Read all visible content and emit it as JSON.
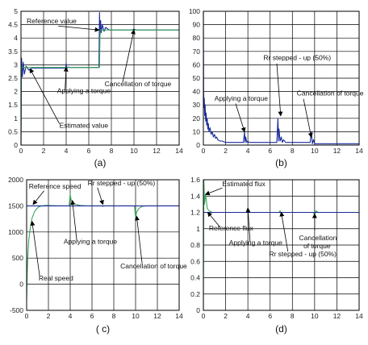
{
  "chart_data": [
    {
      "id": "a",
      "type": "line",
      "caption": "(a)",
      "xlim": [
        0,
        14
      ],
      "ylim": [
        0,
        5
      ],
      "xticks": [
        0,
        2,
        4,
        6,
        8,
        10,
        12,
        14
      ],
      "yticks": [
        0,
        0.5,
        1,
        1.5,
        2,
        2.5,
        3,
        3.5,
        4,
        4.5,
        5
      ],
      "grid": true,
      "series": [
        {
          "color": "#1a2a9a",
          "x": [
            0,
            0.05,
            0.12,
            0.2,
            0.3,
            0.45,
            0.7,
            1,
            3.95,
            4,
            4.05,
            4.15,
            4.3,
            6.9,
            6.95,
            7.0,
            7.05,
            7.1,
            7.2,
            7.35,
            7.5,
            7.8,
            8.2,
            9.8,
            10,
            10.2,
            14
          ],
          "y": [
            0,
            3.25,
            2.55,
            3.1,
            2.65,
            2.95,
            2.8,
            2.88,
            2.88,
            3.05,
            2.85,
            2.92,
            2.9,
            2.9,
            4.95,
            4.1,
            4.65,
            4.2,
            4.5,
            4.25,
            4.4,
            4.3,
            4.3,
            4.3,
            4.33,
            4.3,
            4.3
          ]
        },
        {
          "color": "#3aa45a",
          "x": [
            0,
            0.03,
            0.3,
            1,
            6.95,
            7.0,
            14
          ],
          "y": [
            0,
            2.9,
            2.9,
            2.9,
            2.9,
            4.3,
            4.3
          ]
        }
      ],
      "annotations": [
        {
          "text": "Reference value",
          "x": 0.5,
          "y": 4.55,
          "ax": 3.3,
          "ay": 4.45,
          "tx": 6.9,
          "ty": 4.3
        },
        {
          "text": "Applying a torque",
          "x": 3.2,
          "y": 1.95,
          "ax": 3.9,
          "ay": 2.05,
          "tx": 4.0,
          "ty": 2.9
        },
        {
          "text": "Cancellation of torque",
          "x": 7.4,
          "y": 2.2,
          "ax": 9.0,
          "ay": 2.35,
          "tx": 10.0,
          "ty": 4.3
        },
        {
          "text": "Estimated value",
          "x": 3.4,
          "y": 0.65,
          "ax": 3.4,
          "ay": 0.8,
          "tx": 0.8,
          "ty": 2.85
        }
      ]
    },
    {
      "id": "b",
      "type": "line",
      "caption": "(b)",
      "xlim": [
        0,
        14
      ],
      "ylim": [
        0,
        100
      ],
      "xticks": [
        0,
        2,
        4,
        6,
        8,
        10,
        12,
        14
      ],
      "yticks": [
        0,
        10,
        20,
        30,
        40,
        50,
        60,
        70,
        80,
        90,
        100
      ],
      "grid": true,
      "series": [
        {
          "color": "#1a2a9a",
          "x": [
            0,
            0.02,
            0.05,
            0.08,
            0.12,
            0.16,
            0.2,
            0.25,
            0.3,
            0.35,
            0.4,
            0.45,
            0.5,
            0.6,
            0.7,
            0.8,
            0.9,
            1.0,
            1.1,
            1.2,
            1.3,
            1.5,
            1.7,
            2.0,
            2.5,
            3.0,
            3.6,
            3.7,
            3.75,
            3.8,
            3.9,
            4.0,
            4.1,
            4.3,
            4.6,
            5.0,
            6.0,
            6.6,
            6.7,
            6.75,
            6.8,
            6.9,
            7.0,
            7.1,
            7.2,
            7.4,
            7.8,
            8.5,
            9.0,
            9.6,
            9.7,
            9.8,
            9.9,
            10.0,
            10.2,
            11,
            12,
            13,
            14
          ],
          "y": [
            100,
            40,
            28,
            35,
            22,
            30,
            18,
            24,
            15,
            20,
            12,
            16,
            10,
            13,
            8,
            10,
            6,
            8,
            5,
            6,
            4,
            3,
            3,
            2,
            2,
            2,
            2,
            10,
            2,
            6,
            2,
            3,
            2,
            2,
            2,
            2,
            2,
            2,
            20,
            3,
            12,
            3,
            6,
            2,
            4,
            2,
            2,
            2,
            2,
            2,
            10,
            1,
            4,
            1,
            1,
            1,
            1,
            1,
            1
          ]
        }
      ],
      "annotations": [
        {
          "text": "Rr stepped - up (50%)",
          "x": 5.4,
          "y": 63.5,
          "ax": 6.6,
          "ay": 61,
          "tx": 6.95,
          "ty": 22
        },
        {
          "text": "Applying a torque",
          "x": 1.0,
          "y": 33,
          "ax": 2.9,
          "ay": 31,
          "tx": 3.7,
          "ty": 10
        },
        {
          "text": "Cancellation of torque",
          "x": 8.4,
          "y": 37,
          "ax": 9.0,
          "ay": 34.5,
          "tx": 9.7,
          "ty": 6
        }
      ]
    },
    {
      "id": "c",
      "type": "line",
      "caption": "( c)",
      "xlim": [
        0,
        14
      ],
      "ylim": [
        -500,
        2000
      ],
      "xticks": [
        0,
        2,
        4,
        6,
        8,
        10,
        12,
        14
      ],
      "yticks": [
        -500,
        0,
        500,
        1000,
        1500,
        2000
      ],
      "grid": true,
      "series": [
        {
          "color": "#3aa45a",
          "x": [
            0,
            0.05,
            0.1,
            0.2,
            0.35,
            0.5,
            0.7,
            0.9,
            1.1,
            1.4,
            1.8,
            2.3,
            3.0,
            3.9,
            4.0,
            4.1,
            4.25,
            4.5,
            4.9,
            5.5,
            6.8,
            7.0,
            7.2,
            9.9,
            10.0,
            10.1,
            10.3,
            10.6,
            11,
            14
          ],
          "y": [
            -300,
            200,
            500,
            850,
            1100,
            1270,
            1380,
            1440,
            1480,
            1500,
            1510,
            1505,
            1500,
            1500,
            1720,
            1600,
            1560,
            1530,
            1510,
            1500,
            1500,
            1490,
            1500,
            1500,
            1270,
            1380,
            1450,
            1490,
            1500,
            1500
          ]
        },
        {
          "color": "#1a2a9a",
          "x": [
            0,
            0.08,
            0.4,
            14
          ],
          "y": [
            1500,
            1500,
            1500,
            1500
          ]
        }
      ],
      "annotations": [
        {
          "text": "Reference speed",
          "x": 0.2,
          "y": 1830,
          "ax": 1.6,
          "ay": 1790,
          "tx": 0.6,
          "ty": 1530
        },
        {
          "text": "Rr stepped - up (50%)",
          "x": 5.6,
          "y": 1890,
          "ax": 6.5,
          "ay": 1850,
          "tx": 7.0,
          "ty": 1530
        },
        {
          "text": "Applying a torque",
          "x": 3.4,
          "y": 770,
          "ax": 4.6,
          "ay": 840,
          "tx": 4.2,
          "ty": 1600
        },
        {
          "text": "Real speed",
          "x": 1.1,
          "y": 70,
          "ax": 1.2,
          "ay": 150,
          "tx": 0.5,
          "ty": 1200
        },
        {
          "text": "Cancellation of torque",
          "x": 8.6,
          "y": 300,
          "ax": 10.6,
          "ay": 400,
          "tx": 10.1,
          "ty": 1300
        }
      ]
    },
    {
      "id": "d",
      "type": "line",
      "caption": "(d)",
      "xlim": [
        0,
        14
      ],
      "ylim": [
        0,
        1.6
      ],
      "xticks": [
        0,
        2,
        4,
        6,
        8,
        10,
        12,
        14
      ],
      "yticks": [
        0,
        0.2,
        0.4,
        0.6,
        0.8,
        1,
        1.2,
        1.4,
        1.6
      ],
      "grid": true,
      "series": [
        {
          "color": "#3aa45a",
          "x": [
            0,
            0.04,
            0.1,
            0.2,
            0.35,
            0.5,
            0.8,
            1.2,
            3.9,
            4.0,
            4.15,
            4.3,
            6.8,
            6.9,
            7.0,
            7.1,
            9.9,
            10.0,
            10.1,
            10.3,
            14
          ],
          "y": [
            0,
            1.6,
            1.3,
            1.42,
            1.25,
            1.22,
            1.2,
            1.2,
            1.2,
            1.26,
            1.2,
            1.2,
            1.2,
            1.22,
            1.18,
            1.2,
            1.2,
            1.16,
            1.22,
            1.2,
            1.2
          ]
        },
        {
          "color": "#1a2a9a",
          "x": [
            0,
            0.05,
            0.3,
            14
          ],
          "y": [
            1.2,
            1.2,
            1.2,
            1.2
          ]
        }
      ],
      "annotations": [
        {
          "text": "Estimated flux",
          "x": 1.7,
          "y": 1.52,
          "ax": 1.7,
          "ay": 1.5,
          "tx": 0.2,
          "ty": 1.42
        },
        {
          "text": "Reference flux",
          "x": 0.5,
          "y": 0.98,
          "ax": 1.5,
          "ay": 1.02,
          "tx": 0.4,
          "ty": 1.2
        },
        {
          "text": "Applying a torque",
          "x": 2.3,
          "y": 0.8,
          "ax": 4.2,
          "ay": 0.84,
          "tx": 4.0,
          "ty": 1.25
        },
        {
          "text": "Cancellation",
          "x": 8.6,
          "y": 0.86,
          "ax": 10.0,
          "ay": 0.98,
          "tx": 10.0,
          "ty": 1.18
        },
        {
          "text": "of torque",
          "x": 9.0,
          "y": 0.76
        },
        {
          "text": "Rr stepped - up (50%)",
          "x": 5.9,
          "y": 0.66,
          "ax": 7.6,
          "ay": 0.72,
          "tx": 7.0,
          "ty": 1.2
        }
      ]
    }
  ]
}
